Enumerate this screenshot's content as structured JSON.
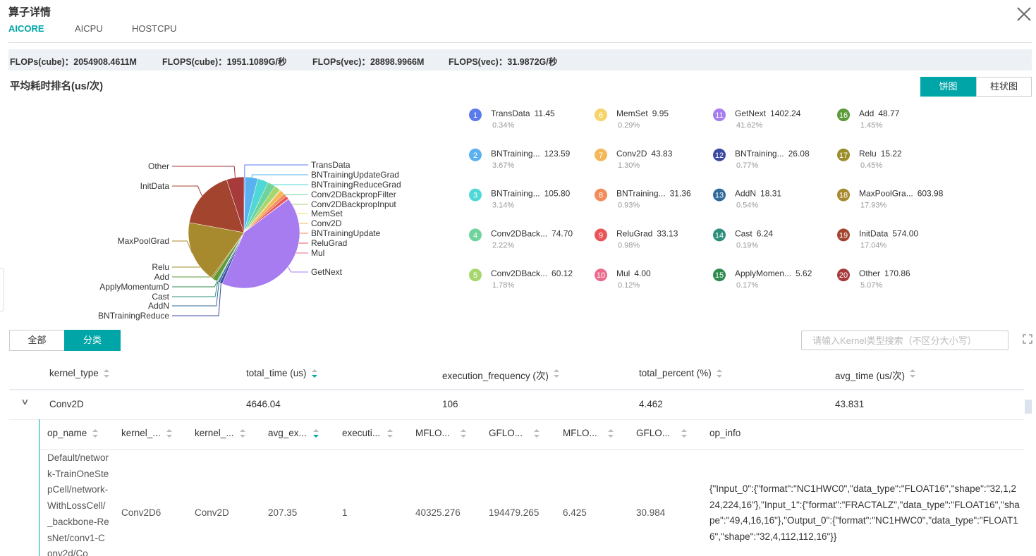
{
  "header": {
    "title": "算子详情",
    "tabs": [
      "AICORE",
      "AICPU",
      "HOSTCPU"
    ]
  },
  "stats": [
    "FLOPs(cube)：2054908.4611M",
    "FLOPS(cube)：1951.1089G/秒",
    "FLOPs(vec)：28898.9966M",
    "FLOPS(vec)：31.9872G/秒"
  ],
  "chart_data": {
    "type": "pie",
    "title": "平均耗时排名(us/次)",
    "categories": [
      "TransData",
      "BNTrainingUpdateGrad",
      "BNTrainingReduceGrad",
      "Conv2DBackpropFilter",
      "Conv2DBackpropInput",
      "MemSet",
      "Conv2D",
      "BNTrainingUpdate",
      "ReluGrad",
      "Mul",
      "GetNext",
      "BNTrainingReduce",
      "AddN",
      "Cast",
      "ApplyMomentumD",
      "Add",
      "Relu",
      "MaxPoolGrad",
      "InitData",
      "Other"
    ],
    "ranks": [
      1,
      2,
      3,
      4,
      5,
      6,
      7,
      8,
      9,
      10,
      11,
      12,
      13,
      14,
      15,
      16,
      17,
      18,
      19,
      20
    ],
    "legend_labels": [
      "TransData",
      "BNTraining...",
      "BNTraining...",
      "Conv2DBack...",
      "Conv2DBack...",
      "MemSet",
      "Conv2D",
      "BNTraining...",
      "ReluGrad",
      "Mul",
      "GetNext",
      "BNTraining...",
      "AddN",
      "Cast",
      "ApplyMomen...",
      "Add",
      "Relu",
      "MaxPoolGra...",
      "InitData",
      "Other"
    ],
    "values": [
      11.45,
      123.59,
      105.8,
      74.7,
      60.12,
      9.95,
      43.83,
      31.36,
      33.13,
      4.0,
      1402.24,
      26.08,
      18.31,
      6.24,
      5.62,
      48.77,
      15.22,
      603.98,
      574.0,
      170.86
    ],
    "value_labels": [
      "11.45",
      "123.59",
      "105.80",
      "74.70",
      "60.12",
      "9.95",
      "43.83",
      "31.36",
      "33.13",
      "4.00",
      "1402.24",
      "26.08",
      "18.31",
      "6.24",
      "5.62",
      "48.77",
      "15.22",
      "603.98",
      "574.00",
      "170.86"
    ],
    "percent_labels": [
      "0.34%",
      "3.67%",
      "3.14%",
      "2.22%",
      "1.78%",
      "0.29%",
      "1.30%",
      "0.93%",
      "0.98%",
      "0.12%",
      "41.62%",
      "0.77%",
      "0.54%",
      "0.19%",
      "0.17%",
      "1.45%",
      "0.45%",
      "17.93%",
      "17.04%",
      "5.07%"
    ],
    "colors": [
      "#5b7bec",
      "#5ab1ef",
      "#4fd8d5",
      "#6fd39c",
      "#a5d76e",
      "#f7d46a",
      "#f4b85a",
      "#f28c5b",
      "#e8565a",
      "#ec6b8c",
      "#a77cf0",
      "#3a4aa0",
      "#2f6a9a",
      "#2d8f7b",
      "#2f8a4e",
      "#5c9a3a",
      "#9b8d2b",
      "#a88a2e",
      "#a3452e",
      "#a73a3a"
    ]
  },
  "chart_toggle": [
    "饼图",
    "柱状图"
  ],
  "filter_tabs": [
    "全部",
    "分类"
  ],
  "search_placeholder": "请输入Kernel类型搜索（不区分大小写）",
  "table": {
    "columns": [
      "kernel_type",
      "total_time (us)",
      "execution_frequency (次)",
      "total_percent (%)",
      "avg_time (us/次)"
    ],
    "rows": [
      [
        "Conv2D",
        "4646.04",
        "106",
        "4.462",
        "43.831"
      ]
    ]
  },
  "sub_table": {
    "columns": [
      "op_name",
      "kernel_...",
      "kernel_...",
      "avg_ex...",
      "executi...",
      "MFLO...",
      "GFLO...",
      "MFLO...",
      "GFLO...",
      "op_info"
    ],
    "rows": [
      [
        "Default/network-TrainOneStepCell/network-WithLossCell/_backbone-ResNet/conv1-Conv2d/Co",
        "Conv2D6",
        "Conv2D",
        "207.35",
        "1",
        "40325.276",
        "194479.265",
        "6.425",
        "30.984",
        "{\"Input_0\":{\"format\":\"NC1HWC0\",\"data_type\":\"FLOAT16\",\"shape\":\"32,1,224,224,16\"},\"Input_1\":{\"format\":\"FRACTALZ\",\"data_type\":\"FLOAT16\",\"shape\":\"49,4,16,16\"},\"Output_0\":{\"format\":\"NC1HWC0\",\"data_type\":\"FLOAT16\",\"shape\":\"32,4,112,112,16\"}}"
      ]
    ]
  }
}
